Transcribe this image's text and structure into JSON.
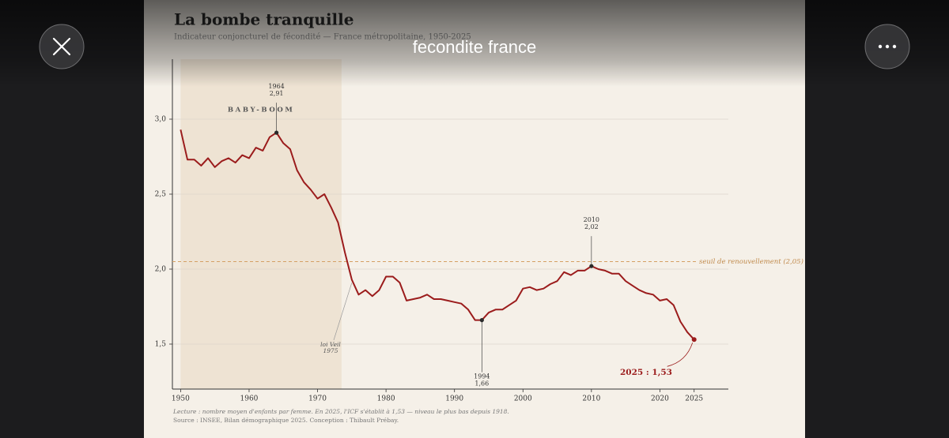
{
  "viewer": {
    "title": "fecondite france"
  },
  "chart_data": {
    "type": "line",
    "title": "La bombe tranquille",
    "subtitle": "Indicateur conjoncturel de fécondité — France métropolitaine, 1950-2025",
    "x": [
      1950,
      1951,
      1952,
      1953,
      1954,
      1955,
      1956,
      1957,
      1958,
      1959,
      1960,
      1961,
      1962,
      1963,
      1964,
      1965,
      1966,
      1967,
      1968,
      1969,
      1970,
      1971,
      1972,
      1973,
      1974,
      1975,
      1976,
      1977,
      1978,
      1979,
      1980,
      1981,
      1982,
      1983,
      1984,
      1985,
      1986,
      1987,
      1988,
      1989,
      1990,
      1991,
      1992,
      1993,
      1994,
      1995,
      1996,
      1997,
      1998,
      1999,
      2000,
      2001,
      2002,
      2003,
      2004,
      2005,
      2006,
      2007,
      2008,
      2009,
      2010,
      2011,
      2012,
      2013,
      2014,
      2015,
      2016,
      2017,
      2018,
      2019,
      2020,
      2021,
      2022,
      2023,
      2024,
      2025
    ],
    "values": [
      2.93,
      2.73,
      2.73,
      2.69,
      2.74,
      2.68,
      2.72,
      2.74,
      2.71,
      2.76,
      2.74,
      2.81,
      2.79,
      2.88,
      2.91,
      2.84,
      2.8,
      2.66,
      2.58,
      2.53,
      2.47,
      2.5,
      2.41,
      2.31,
      2.11,
      1.93,
      1.83,
      1.86,
      1.82,
      1.86,
      1.95,
      1.95,
      1.91,
      1.79,
      1.8,
      1.81,
      1.83,
      1.8,
      1.8,
      1.79,
      1.78,
      1.77,
      1.73,
      1.66,
      1.66,
      1.71,
      1.73,
      1.73,
      1.76,
      1.79,
      1.87,
      1.88,
      1.86,
      1.87,
      1.9,
      1.92,
      1.98,
      1.96,
      1.99,
      1.99,
      2.02,
      2.0,
      1.99,
      1.97,
      1.97,
      1.92,
      1.89,
      1.86,
      1.84,
      1.83,
      1.79,
      1.8,
      1.76,
      1.65,
      1.58,
      1.53
    ],
    "color": "#9b1c1c",
    "xlim": [
      1948.8,
      2030
    ],
    "ylim": [
      1.2,
      3.4
    ],
    "xticks": [
      1950,
      1960,
      1970,
      1980,
      1990,
      2000,
      2010,
      2020,
      2025
    ],
    "yticks": [
      {
        "value": 1.5,
        "label": "1,5"
      },
      {
        "value": 2.0,
        "label": "2,0"
      },
      {
        "value": 2.5,
        "label": "2,5"
      },
      {
        "value": 3.0,
        "label": "3,0"
      }
    ],
    "grid": true,
    "highlight_span": {
      "label": "BABY-BOOM",
      "range": [
        1950,
        1973.5
      ]
    },
    "threshold": {
      "value": 2.05,
      "label": "seuil de renouvellement (2,05)"
    },
    "annotations": [
      {
        "x": 1964,
        "y": 2.91,
        "lines": [
          "1964",
          "2,91"
        ]
      },
      {
        "x": 1994,
        "y": 1.66,
        "lines": [
          "1994",
          "1,66"
        ]
      },
      {
        "x": 2010,
        "y": 2.02,
        "lines": [
          "2010",
          "2,02"
        ]
      }
    ],
    "event": {
      "x": 1975,
      "y": 1.93,
      "lines": [
        "loi Veil",
        "1975"
      ]
    },
    "last_label": {
      "x": 2025,
      "y": 1.53,
      "text": "2025 : 1,53"
    },
    "notes": [
      "Lecture : nombre moyen d'enfants par femme. En 2025, l'ICF s'établit à 1,53 — niveau le plus bas depuis 1918.",
      "Source : INSEE, Bilan démographique 2025. Conception : Thibault Prébay."
    ]
  }
}
